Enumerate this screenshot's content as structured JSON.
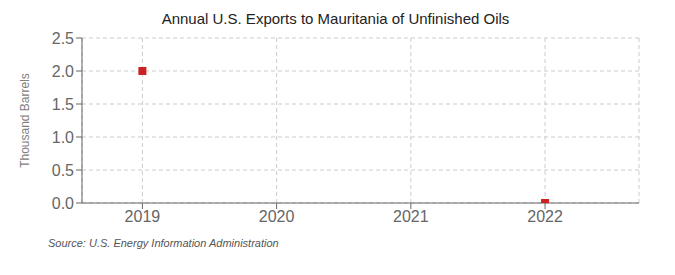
{
  "chart_data": {
    "type": "scatter",
    "title": "Annual U.S. Exports to Mauritania of Unfinished Oils",
    "ylabel": "Thousand Barrels",
    "annotation": "Source: U.S. Energy Information Administration",
    "x": [
      2019,
      2022
    ],
    "values": [
      2.0,
      0.0
    ],
    "color": "#CC2222",
    "marker": "square",
    "xlim": [
      2018.55,
      2022.7
    ],
    "ylim": [
      0,
      2.5
    ],
    "xticks": [
      2019,
      2020,
      2021,
      2022
    ],
    "yticks": [
      {
        "value": 0,
        "label": "0.0"
      },
      0.5,
      {
        "value": 1,
        "label": "1.0"
      },
      1.5,
      {
        "value": 2,
        "label": "2.0"
      },
      2.5
    ],
    "grid": true
  }
}
